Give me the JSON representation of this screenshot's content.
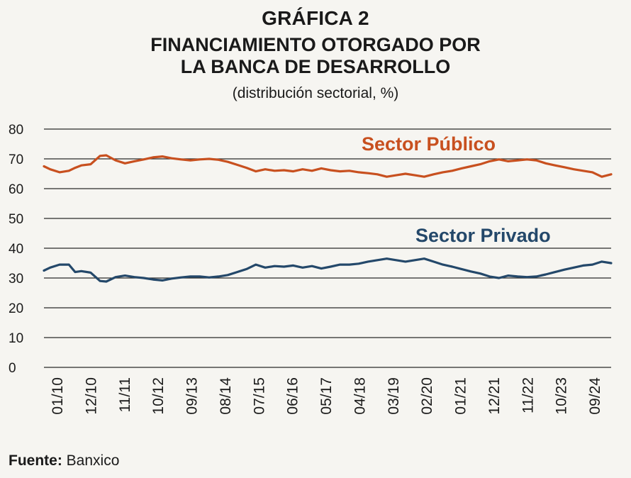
{
  "header": {
    "kicker": "GRÁFICA 2",
    "title_line1": "FINANCIAMIENTO OTORGADO POR",
    "title_line2": "LA BANCA DE DESARROLLO",
    "subtitle": "(distribución sectorial, %)"
  },
  "footer": {
    "source_label": "Fuente:",
    "source_value": "Banxico"
  },
  "colors": {
    "publico": "#c8501f",
    "privado": "#24486a",
    "grid": "#2b2b2b"
  },
  "chart_data": {
    "type": "line",
    "ylim": [
      0,
      80
    ],
    "yticks": [
      0,
      10,
      20,
      30,
      40,
      50,
      60,
      70,
      80
    ],
    "x_tick_labels": [
      "01/10",
      "12/10",
      "11/11",
      "10/12",
      "09/13",
      "08/14",
      "07/15",
      "06/16",
      "05/17",
      "04/18",
      "03/19",
      "02/20",
      "01/21",
      "12/21",
      "11/22",
      "10/23",
      "09/24"
    ],
    "x_start": "2010-01",
    "x_end": "2025-03",
    "grid": true,
    "legend": "inline labels",
    "series": [
      {
        "name": "Sector Público",
        "color": "#c8501f",
        "points": [
          [
            "2010-01",
            67.5
          ],
          [
            "2010-03",
            66.5
          ],
          [
            "2010-06",
            65.5
          ],
          [
            "2010-09",
            66
          ],
          [
            "2010-11",
            67
          ],
          [
            "2011-01",
            67.8
          ],
          [
            "2011-04",
            68.2
          ],
          [
            "2011-07",
            71
          ],
          [
            "2011-09",
            71.2
          ],
          [
            "2011-12",
            69.5
          ],
          [
            "2012-03",
            68.5
          ],
          [
            "2012-06",
            69.2
          ],
          [
            "2012-09",
            69.8
          ],
          [
            "2012-12",
            70.5
          ],
          [
            "2013-03",
            70.8
          ],
          [
            "2013-06",
            70.2
          ],
          [
            "2013-09",
            69.8
          ],
          [
            "2013-12",
            69.5
          ],
          [
            "2014-03",
            69.8
          ],
          [
            "2014-06",
            70
          ],
          [
            "2014-09",
            69.7
          ],
          [
            "2014-12",
            69
          ],
          [
            "2015-03",
            68
          ],
          [
            "2015-06",
            67
          ],
          [
            "2015-09",
            65.8
          ],
          [
            "2015-12",
            66.5
          ],
          [
            "2016-03",
            66
          ],
          [
            "2016-06",
            66.2
          ],
          [
            "2016-09",
            65.8
          ],
          [
            "2016-12",
            66.5
          ],
          [
            "2017-03",
            66
          ],
          [
            "2017-06",
            66.8
          ],
          [
            "2017-09",
            66.2
          ],
          [
            "2017-12",
            65.8
          ],
          [
            "2018-03",
            66
          ],
          [
            "2018-06",
            65.5
          ],
          [
            "2018-09",
            65.2
          ],
          [
            "2018-12",
            64.8
          ],
          [
            "2019-03",
            64
          ],
          [
            "2019-06",
            64.5
          ],
          [
            "2019-09",
            65
          ],
          [
            "2019-12",
            64.5
          ],
          [
            "2020-03",
            64
          ],
          [
            "2020-06",
            64.8
          ],
          [
            "2020-09",
            65.5
          ],
          [
            "2020-12",
            66
          ],
          [
            "2021-03",
            66.8
          ],
          [
            "2021-06",
            67.5
          ],
          [
            "2021-09",
            68.2
          ],
          [
            "2021-12",
            69.2
          ],
          [
            "2022-03",
            69.8
          ],
          [
            "2022-06",
            69.2
          ],
          [
            "2022-09",
            69.5
          ],
          [
            "2022-12",
            69.8
          ],
          [
            "2023-03",
            69.5
          ],
          [
            "2023-06",
            68.5
          ],
          [
            "2023-09",
            67.8
          ],
          [
            "2023-12",
            67.2
          ],
          [
            "2024-03",
            66.5
          ],
          [
            "2024-06",
            66
          ],
          [
            "2024-09",
            65.5
          ],
          [
            "2024-12",
            64
          ],
          [
            "2025-03",
            64.8
          ]
        ]
      },
      {
        "name": "Sector Privado",
        "color": "#24486a",
        "points": [
          [
            "2010-01",
            32.5
          ],
          [
            "2010-03",
            33.5
          ],
          [
            "2010-06",
            34.5
          ],
          [
            "2010-09",
            34.5
          ],
          [
            "2010-11",
            32
          ],
          [
            "2011-01",
            32.3
          ],
          [
            "2011-04",
            31.8
          ],
          [
            "2011-07",
            29
          ],
          [
            "2011-09",
            28.8
          ],
          [
            "2011-12",
            30.3
          ],
          [
            "2012-03",
            30.8
          ],
          [
            "2012-06",
            30.3
          ],
          [
            "2012-09",
            30
          ],
          [
            "2012-12",
            29.5
          ],
          [
            "2013-03",
            29.2
          ],
          [
            "2013-06",
            29.8
          ],
          [
            "2013-09",
            30.2
          ],
          [
            "2013-12",
            30.5
          ],
          [
            "2014-03",
            30.5
          ],
          [
            "2014-06",
            30.2
          ],
          [
            "2014-09",
            30.5
          ],
          [
            "2014-12",
            31
          ],
          [
            "2015-03",
            32
          ],
          [
            "2015-06",
            33
          ],
          [
            "2015-09",
            34.5
          ],
          [
            "2015-12",
            33.5
          ],
          [
            "2016-03",
            34
          ],
          [
            "2016-06",
            33.8
          ],
          [
            "2016-09",
            34.2
          ],
          [
            "2016-12",
            33.5
          ],
          [
            "2017-03",
            34
          ],
          [
            "2017-06",
            33.2
          ],
          [
            "2017-09",
            33.8
          ],
          [
            "2017-12",
            34.5
          ],
          [
            "2018-03",
            34.5
          ],
          [
            "2018-06",
            34.8
          ],
          [
            "2018-09",
            35.5
          ],
          [
            "2018-12",
            36
          ],
          [
            "2019-03",
            36.5
          ],
          [
            "2019-06",
            36
          ],
          [
            "2019-09",
            35.5
          ],
          [
            "2019-12",
            36
          ],
          [
            "2020-03",
            36.5
          ],
          [
            "2020-06",
            35.5
          ],
          [
            "2020-09",
            34.5
          ],
          [
            "2020-12",
            33.8
          ],
          [
            "2021-03",
            33
          ],
          [
            "2021-06",
            32.2
          ],
          [
            "2021-09",
            31.5
          ],
          [
            "2021-12",
            30.5
          ],
          [
            "2022-03",
            30
          ],
          [
            "2022-06",
            30.8
          ],
          [
            "2022-09",
            30.5
          ],
          [
            "2022-12",
            30.3
          ],
          [
            "2023-03",
            30.5
          ],
          [
            "2023-06",
            31.2
          ],
          [
            "2023-09",
            32
          ],
          [
            "2023-12",
            32.8
          ],
          [
            "2024-03",
            33.5
          ],
          [
            "2024-06",
            34.2
          ],
          [
            "2024-09",
            34.5
          ],
          [
            "2024-12",
            35.5
          ],
          [
            "2025-03",
            35
          ]
        ]
      }
    ]
  }
}
